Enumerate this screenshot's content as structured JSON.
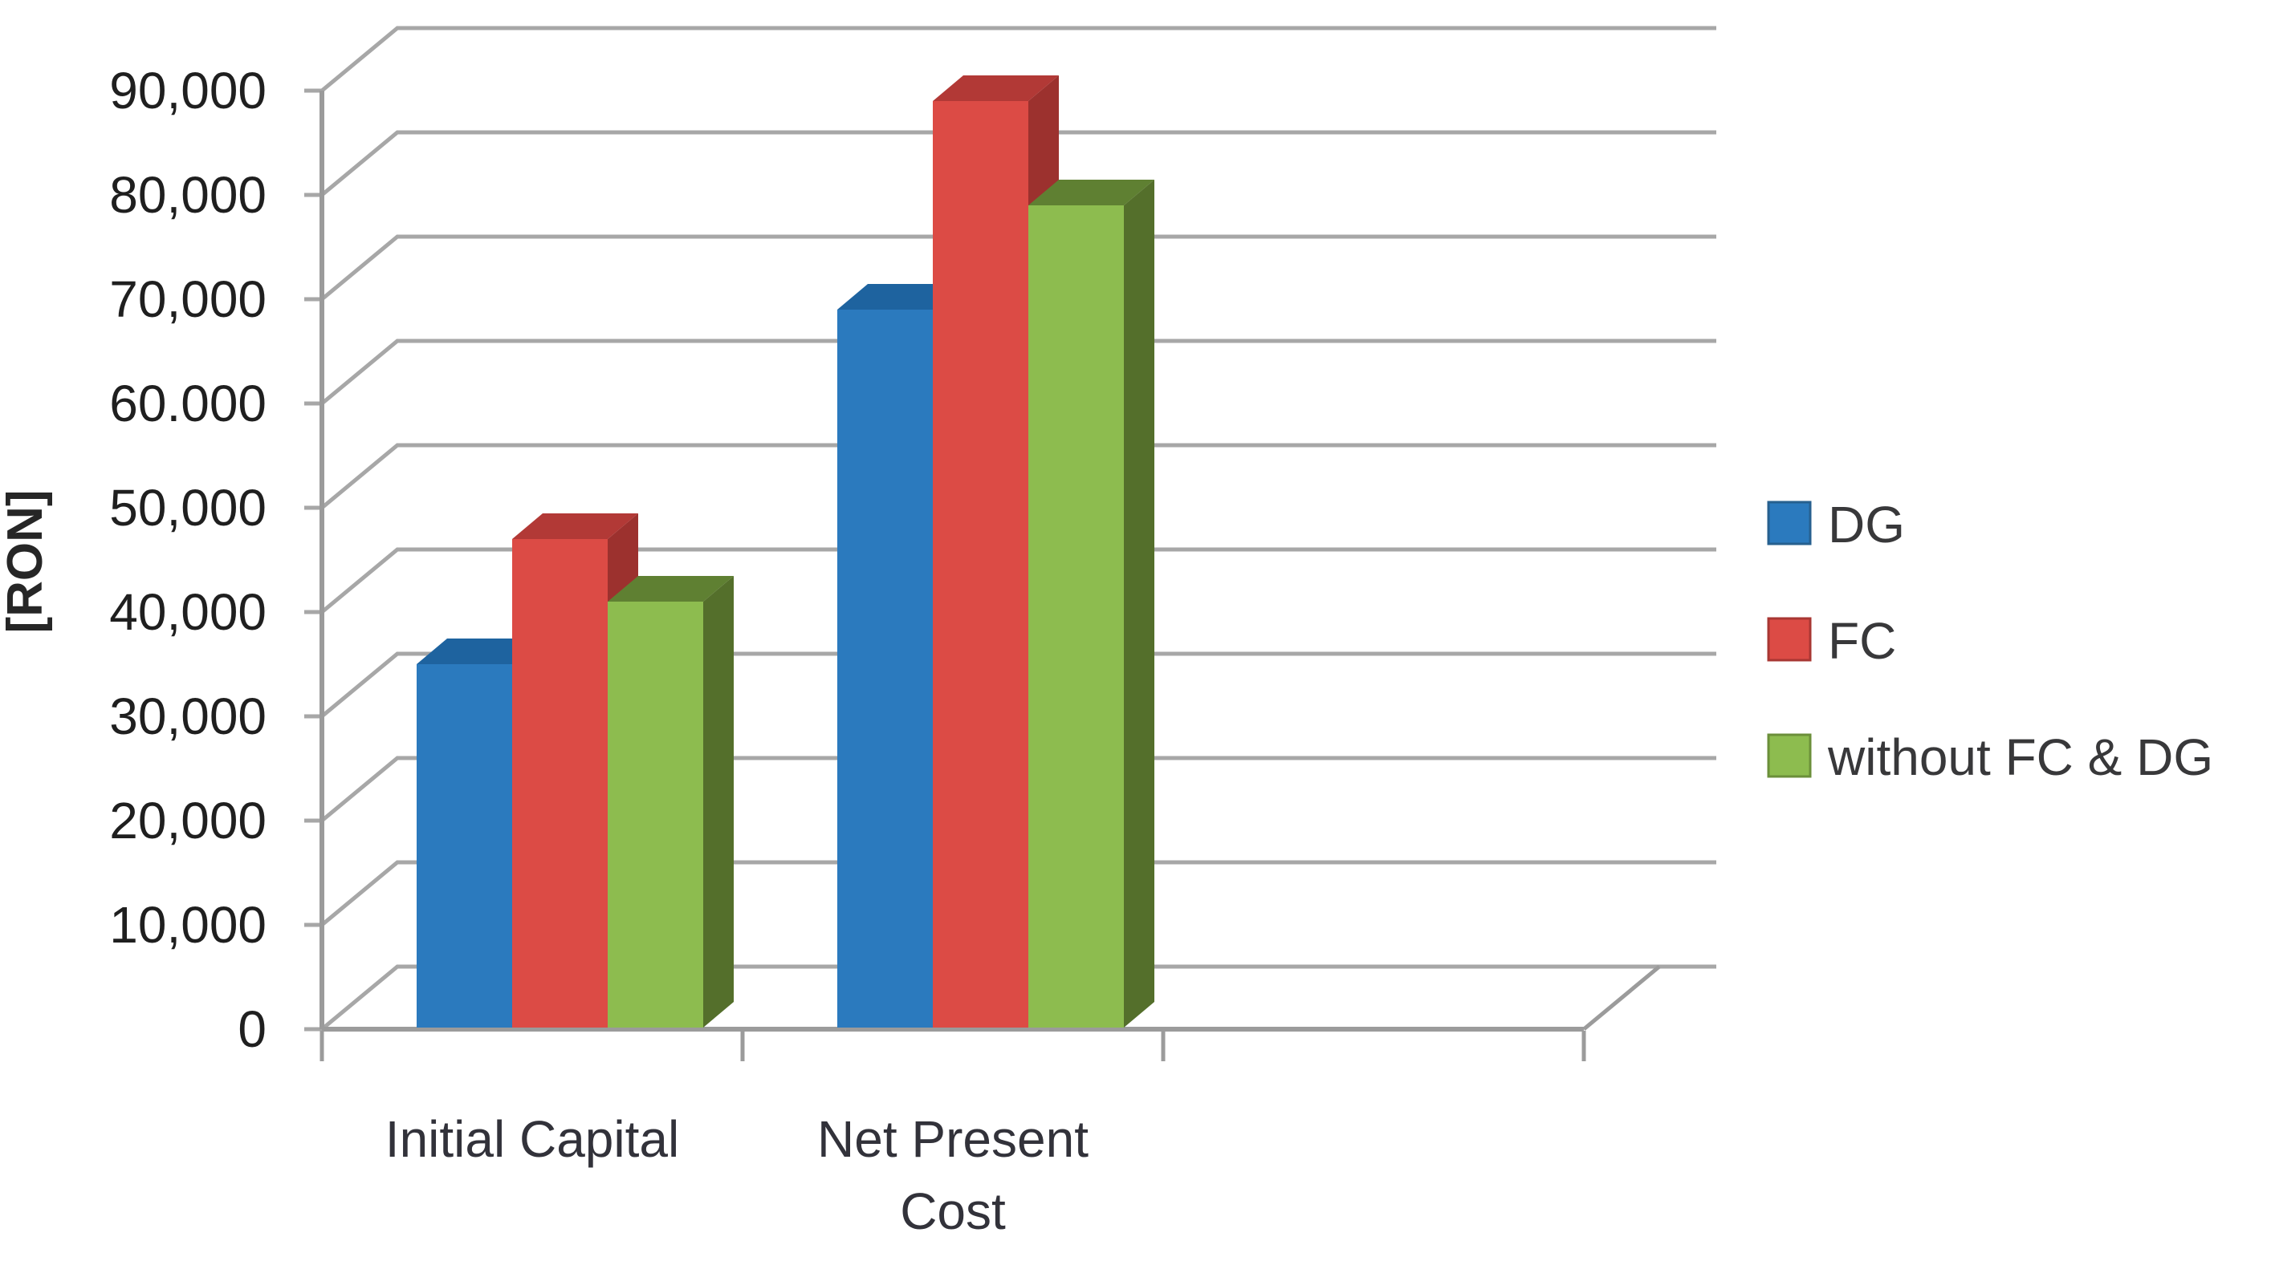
{
  "page": {
    "background_color": "#ffffff"
  },
  "chart_data": {
    "type": "bar",
    "variant": "3d-clustered-column",
    "title": "",
    "xlabel": "",
    "ylabel": "[RON]",
    "categories": [
      "Initial Capital",
      "Net Present Cost"
    ],
    "category_label_lines": [
      [
        "Initial Capital"
      ],
      [
        "Net Present",
        "Cost"
      ]
    ],
    "series": [
      {
        "name": "DG",
        "values": [
          32000,
          66000
        ]
      },
      {
        "name": "FC",
        "values": [
          44000,
          86000
        ]
      },
      {
        "name": "without FC & DG",
        "values": [
          38000,
          76000
        ]
      }
    ],
    "ylim": [
      0,
      90000
    ],
    "ytick_step": 10000,
    "ytick_labels": [
      "0",
      "10,000",
      "20,000",
      "30,000",
      "40,000",
      "50,000",
      "60.000",
      "70,000",
      "80,000",
      "90,000"
    ],
    "grid": true,
    "legend_position": "right",
    "empty_trailing_category_slots": 1
  },
  "legend": {
    "items": [
      {
        "label": "DG"
      },
      {
        "label": "FC"
      },
      {
        "label": "without FC & DG"
      }
    ]
  },
  "colors": {
    "series": [
      {
        "front": "#2b7abe",
        "top": "#1e639f",
        "side": "#15497c",
        "border": "#27608f"
      },
      {
        "front": "#dc4b45",
        "top": "#b23936",
        "side": "#9c312e",
        "border": "#a83733"
      },
      {
        "front": "#8dbc4f",
        "top": "#5f8032",
        "side": "#546f2b",
        "border": "#6b8f3a"
      }
    ],
    "gridline": "#a7a7a7",
    "axis": "#9b9b9b",
    "tick_text": "#1f1f1f",
    "category_text": "#32323a",
    "legend_text": "#38383a",
    "ylabel_text": "#262626"
  }
}
